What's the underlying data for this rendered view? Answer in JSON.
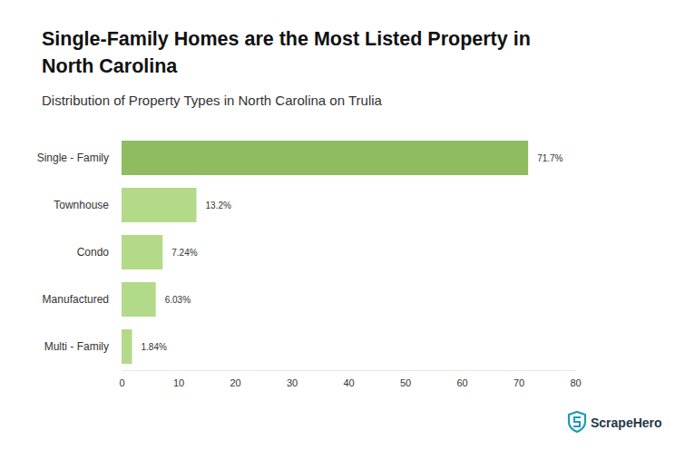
{
  "chart_data": {
    "type": "bar",
    "orientation": "horizontal",
    "title": "Single-Family Homes are the Most Listed Property in North Carolina",
    "subtitle": "Distribution of Property Types in North Carolina on Trulia",
    "categories": [
      "Single - Family",
      "Townhouse",
      "Condo",
      "Manufactured",
      "Multi - Family"
    ],
    "values": [
      71.7,
      13.2,
      7.24,
      6.03,
      1.84
    ],
    "value_labels": [
      "71.7%",
      "13.2%",
      "7.24%",
      "6.03%",
      "1.84%"
    ],
    "data_labels": true,
    "colors": [
      "#8fbc5e",
      "#b3da88",
      "#b3da88",
      "#b3da88",
      "#b3da88"
    ],
    "xlim": [
      0,
      80
    ],
    "xticks": [
      0,
      10,
      20,
      30,
      40,
      50,
      60,
      70,
      80
    ],
    "grid": false,
    "annotations": [
      "ScrapeHero"
    ]
  }
}
